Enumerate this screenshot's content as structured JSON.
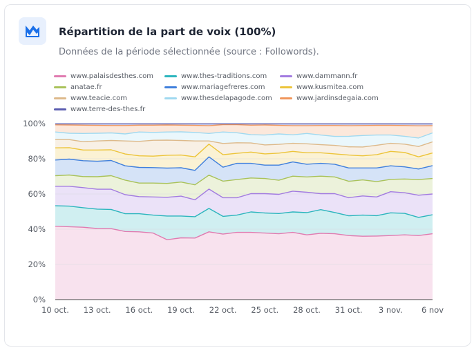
{
  "header": {
    "title": "Répartition de la part de voix (100%)",
    "subtitle": "Données de la période sélectionnée (source : Followords).",
    "icon": "area-chart-icon",
    "accent": "#1a6fe8"
  },
  "chart_data": {
    "type": "area",
    "stacked": "percent",
    "legend": "top",
    "grid": true,
    "ylim": [
      0,
      100
    ],
    "yticks": [
      "0%",
      "20%",
      "40%",
      "60%",
      "80%",
      "100%"
    ],
    "categories": [
      "10 oct.",
      "11 oct.",
      "12 oct.",
      "13 oct.",
      "14 oct.",
      "15 oct.",
      "16 oct.",
      "17 oct.",
      "18 oct.",
      "19 oct.",
      "20 oct.",
      "21 oct.",
      "22 oct.",
      "23 oct.",
      "24 oct.",
      "25 oct.",
      "26 oct.",
      "27 oct.",
      "28 oct.",
      "29 oct.",
      "30 oct.",
      "31 oct.",
      "1 nov.",
      "2 nov.",
      "3 nov.",
      "4 nov.",
      "5 nov.",
      "6 nov"
    ],
    "xticks": [
      "10 oct.",
      "13 oct.",
      "16 oct.",
      "19 oct.",
      "22 oct.",
      "25 oct.",
      "28 oct.",
      "31 oct.",
      "3 nov.",
      "6 nov"
    ],
    "series": [
      {
        "name": "www.palaisdesthes.com",
        "color": "#e07bb0",
        "values": [
          41.7,
          41.4,
          41.1,
          40.4,
          40.3,
          38.7,
          38.5,
          37.8,
          34.0,
          35.1,
          35.0,
          38.5,
          37.2,
          38.2,
          38.2,
          37.8,
          37.4,
          38.2,
          36.8,
          37.7,
          37.4,
          36.4,
          36.0,
          36.1,
          36.4,
          36.8,
          36.4,
          37.4
        ]
      },
      {
        "name": "www.thes-traditions.com",
        "color": "#2bb5bd",
        "values": [
          11.6,
          11.7,
          11.1,
          11.0,
          10.9,
          10.1,
          10.3,
          10.2,
          13.5,
          12.4,
          12.1,
          13.3,
          10.1,
          9.8,
          11.6,
          11.4,
          11.5,
          11.6,
          12.6,
          13.4,
          12.1,
          11.2,
          12.0,
          11.6,
          12.9,
          12.2,
          10.3,
          10.8
        ]
      },
      {
        "name": "www.dammann.fr",
        "color": "#a27be0",
        "values": [
          11.1,
          11.3,
          11.4,
          11.3,
          11.5,
          10.8,
          9.7,
          10.3,
          10.6,
          11.3,
          9.6,
          11.0,
          10.6,
          9.9,
          10.4,
          11.0,
          10.9,
          11.8,
          11.6,
          9.1,
          10.7,
          10.3,
          10.9,
          10.6,
          12.0,
          11.7,
          12.6,
          11.8
        ]
      },
      {
        "name": "anatae.fr",
        "color": "#a9c25a",
        "values": [
          6.0,
          6.4,
          6.3,
          7.1,
          7.7,
          8.3,
          7.7,
          7.9,
          7.9,
          8.0,
          8.5,
          7.9,
          9.4,
          10.3,
          8.9,
          8.6,
          8.0,
          8.5,
          8.7,
          9.9,
          9.5,
          9.3,
          9.1,
          8.7,
          7.0,
          7.8,
          8.9,
          8.8
        ]
      },
      {
        "name": "www.mariagefreres.com",
        "color": "#3f7fdc",
        "values": [
          8.9,
          9.0,
          9.0,
          8.8,
          8.6,
          8.1,
          8.9,
          8.8,
          8.7,
          8.1,
          8.2,
          10.4,
          7.9,
          9.2,
          8.3,
          7.6,
          8.6,
          8.1,
          7.2,
          7.3,
          7.2,
          7.6,
          6.8,
          7.8,
          7.7,
          6.9,
          6.0,
          7.3
        ]
      },
      {
        "name": "www.kusmitea.com",
        "color": "#ecc43a",
        "values": [
          6.9,
          6.5,
          6.1,
          6.4,
          6.1,
          6.7,
          6.6,
          6.5,
          7.3,
          7.2,
          7.7,
          7.2,
          7.1,
          5.7,
          6.4,
          6.4,
          6.8,
          6.0,
          6.5,
          6.0,
          5.9,
          7.3,
          6.9,
          7.5,
          8.2,
          8.2,
          6.9,
          7.2
        ]
      },
      {
        "name": "www.teacie.com",
        "color": "#ddb98a",
        "values": [
          4.7,
          4.6,
          4.7,
          5.1,
          5.3,
          7.4,
          8.2,
          9.0,
          8.6,
          8.3,
          9.0,
          1.8,
          6.4,
          6.0,
          5.2,
          5.1,
          5.0,
          4.6,
          5.1,
          4.6,
          4.8,
          4.7,
          5.0,
          5.4,
          4.6,
          4.7,
          5.9,
          6.3
        ]
      },
      {
        "name": "www.thesdelapagode.com",
        "color": "#9fd9f0",
        "values": [
          4.3,
          3.6,
          4.7,
          4.4,
          4.3,
          4.0,
          5.3,
          4.5,
          4.6,
          4.9,
          4.9,
          4.3,
          6.5,
          5.7,
          4.7,
          5.6,
          5.9,
          4.8,
          5.9,
          5.5,
          5.1,
          6.0,
          6.5,
          5.8,
          4.7,
          4.5,
          4.8,
          5.1
        ]
      },
      {
        "name": "www.jardinsdegaia.com",
        "color": "#f0955a",
        "values": [
          4.1,
          4.7,
          4.7,
          4.5,
          4.2,
          4.8,
          3.9,
          4.1,
          4.0,
          3.8,
          4.0,
          4.4,
          4.2,
          4.6,
          5.4,
          5.7,
          4.9,
          5.2,
          4.4,
          5.4,
          6.2,
          6.0,
          5.7,
          5.5,
          5.5,
          6.1,
          6.9,
          4.1
        ]
      },
      {
        "name": "www.terre-des-thes.fr",
        "color": "#5a5cb0",
        "values": [
          0.7,
          0.8,
          0.9,
          1.0,
          1.1,
          1.1,
          0.9,
          0.9,
          0.8,
          0.9,
          1.0,
          1.2,
          0.6,
          0.6,
          0.9,
          0.8,
          1.0,
          1.2,
          1.2,
          1.1,
          1.1,
          1.2,
          1.1,
          1.0,
          1.0,
          1.1,
          1.3,
          1.2
        ]
      }
    ]
  }
}
